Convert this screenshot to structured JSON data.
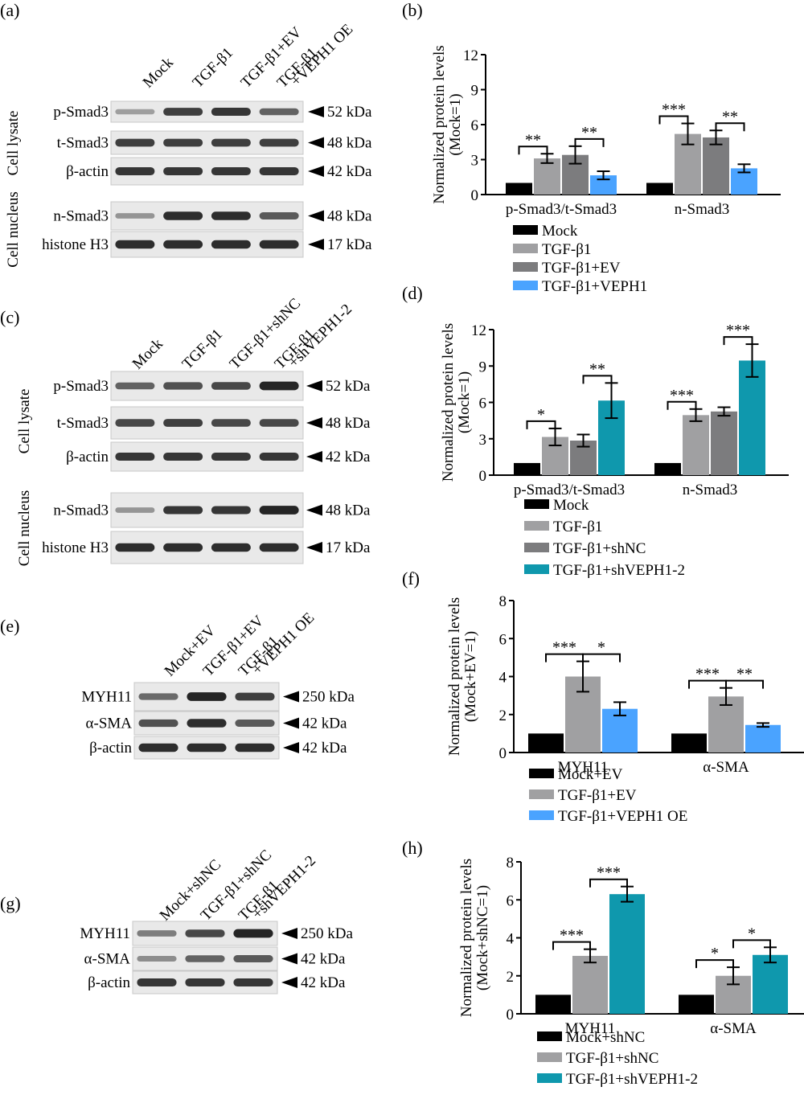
{
  "panels": [
    {
      "id": "a",
      "label": "(a)"
    },
    {
      "id": "b",
      "label": "(b)"
    },
    {
      "id": "c",
      "label": "(c)"
    },
    {
      "id": "d",
      "label": "(d)"
    },
    {
      "id": "e",
      "label": "(e)"
    },
    {
      "id": "f",
      "label": "(f)"
    },
    {
      "id": "g",
      "label": "(g)"
    },
    {
      "id": "h",
      "label": "(h)"
    }
  ],
  "blots": [
    {
      "id": "a",
      "lanes": [
        [
          "Mock"
        ],
        [
          "TGF-β1"
        ],
        [
          "TGF-β1+EV"
        ],
        [
          "TGF-β1",
          "+VEPH1 OE"
        ]
      ],
      "groups": [
        {
          "name": "Cell lysate",
          "rows": [
            {
              "protein": "p-Smad3",
              "size": "52 kDa",
              "intensity": [
                0.25,
                0.8,
                0.85,
                0.6
              ]
            },
            {
              "protein": "t-Smad3",
              "size": "48 kDa",
              "intensity": [
                0.8,
                0.8,
                0.8,
                0.8
              ]
            },
            {
              "protein": "β-actin",
              "size": "42 kDa",
              "intensity": [
                0.85,
                0.85,
                0.85,
                0.85
              ]
            }
          ]
        },
        {
          "name": "Cell nucleus",
          "rows": [
            {
              "protein": "n-Smad3",
              "size": "48 kDa",
              "intensity": [
                0.3,
                0.9,
                0.9,
                0.65
              ]
            },
            {
              "protein": "histone H3",
              "size": "17 kDa",
              "intensity": [
                0.9,
                0.9,
                0.9,
                0.9
              ]
            }
          ]
        }
      ]
    },
    {
      "id": "c",
      "lanes": [
        [
          "Mock"
        ],
        [
          "TGF-β1"
        ],
        [
          "TGF-β1+shNC"
        ],
        [
          "TGF-β1",
          "+shVEPH1-2"
        ]
      ],
      "groups": [
        {
          "name": "Cell lysate",
          "rows": [
            {
              "protein": "p-Smad3",
              "size": "52 kDa",
              "intensity": [
                0.6,
                0.7,
                0.75,
                0.95
              ]
            },
            {
              "protein": "t-Smad3",
              "size": "48 kDa",
              "intensity": [
                0.75,
                0.8,
                0.75,
                0.75
              ]
            },
            {
              "protein": "β-actin",
              "size": "42 kDa",
              "intensity": [
                0.85,
                0.85,
                0.85,
                0.85
              ]
            }
          ]
        },
        {
          "name": "Cell nucleus",
          "rows": [
            {
              "protein": "n-Smad3",
              "size": "48 kDa",
              "intensity": [
                0.3,
                0.85,
                0.85,
                0.95
              ]
            },
            {
              "protein": "histone H3",
              "size": "17 kDa",
              "intensity": [
                0.9,
                0.9,
                0.9,
                0.9
              ]
            }
          ]
        }
      ]
    },
    {
      "id": "e",
      "lanes": [
        [
          "Mock+EV"
        ],
        [
          "TGF-β1+EV"
        ],
        [
          "TGF-β1",
          "+VEPH1 OE"
        ]
      ],
      "groups": [
        {
          "name": "",
          "rows": [
            {
              "protein": "MYH11",
              "size": "250 kDa",
              "intensity": [
                0.55,
                0.95,
                0.8
              ]
            },
            {
              "protein": "α-SMA",
              "size": "42 kDa",
              "intensity": [
                0.7,
                0.9,
                0.65
              ]
            },
            {
              "protein": "β-actin",
              "size": "42 kDa",
              "intensity": [
                0.9,
                0.9,
                0.9
              ]
            }
          ]
        }
      ]
    },
    {
      "id": "g",
      "lanes": [
        [
          "Mock+shNC"
        ],
        [
          "TGF-β1+shNC"
        ],
        [
          "TGF-β1",
          "+shVEPH1-2"
        ]
      ],
      "groups": [
        {
          "name": "",
          "rows": [
            {
              "protein": "MYH11",
              "size": "250 kDa",
              "intensity": [
                0.45,
                0.75,
                0.95
              ]
            },
            {
              "protein": "α-SMA",
              "size": "42 kDa",
              "intensity": [
                0.35,
                0.6,
                0.65
              ]
            },
            {
              "protein": "β-actin",
              "size": "42 kDa",
              "intensity": [
                0.85,
                0.85,
                0.85
              ]
            }
          ]
        }
      ]
    }
  ],
  "colors": {
    "black": "#000000",
    "light_gray": "#a0a0a2",
    "dark_gray": "#7c7c7e",
    "blue": "#4aa3ff",
    "teal": "#0f98ad",
    "blot_bg": "#e9e9e9",
    "band": "#1c1c1c"
  },
  "chart_data": [
    {
      "id": "b",
      "type": "bar",
      "ylabel": [
        "Normalized protein levels",
        "(Mock=1)"
      ],
      "ylim": [
        0,
        12
      ],
      "yticks": [
        0,
        3,
        6,
        9,
        12
      ],
      "categories": [
        "p-Smad3/t-Smad3",
        "n-Smad3"
      ],
      "series": [
        {
          "name": "Mock",
          "color": "#000000",
          "values": [
            1,
            1
          ],
          "errors": [
            0,
            0
          ]
        },
        {
          "name": "TGF-β1",
          "color": "#a0a0a2",
          "values": [
            3.1,
            5.2
          ],
          "errors": [
            0.4,
            0.9
          ]
        },
        {
          "name": "TGF-β1+EV",
          "color": "#7c7c7e",
          "values": [
            3.4,
            4.9
          ],
          "errors": [
            0.75,
            0.6
          ]
        },
        {
          "name": "TGF-β1+VEPH1",
          "color": "#4aa3ff",
          "values": [
            1.65,
            2.25
          ],
          "errors": [
            0.35,
            0.35
          ]
        }
      ],
      "significance": [
        {
          "cat": 0,
          "from": 0,
          "to": 1,
          "label": "**"
        },
        {
          "cat": 0,
          "from": 2,
          "to": 3,
          "label": "**"
        },
        {
          "cat": 1,
          "from": 0,
          "to": 1,
          "label": "***"
        },
        {
          "cat": 1,
          "from": 2,
          "to": 3,
          "label": "**"
        }
      ],
      "legend": "below"
    },
    {
      "id": "d",
      "type": "bar",
      "ylabel": [
        "Normalized protein levels",
        "(Mock=1)"
      ],
      "ylim": [
        0,
        12
      ],
      "yticks": [
        0,
        3,
        6,
        9,
        12
      ],
      "categories": [
        "p-Smad3/t-Smad3",
        "n-Smad3"
      ],
      "series": [
        {
          "name": "Mock",
          "color": "#000000",
          "values": [
            1,
            1
          ],
          "errors": [
            0,
            0
          ]
        },
        {
          "name": "TGF-β1",
          "color": "#a0a0a2",
          "values": [
            3.15,
            4.95
          ],
          "errors": [
            0.7,
            0.5
          ]
        },
        {
          "name": "TGF-β1+shNC",
          "color": "#7c7c7e",
          "values": [
            2.85,
            5.25
          ],
          "errors": [
            0.5,
            0.35
          ]
        },
        {
          "name": "TGF-β1+shVEPH1-2",
          "color": "#0f98ad",
          "values": [
            6.15,
            9.45
          ],
          "errors": [
            1.45,
            1.35
          ]
        }
      ],
      "significance": [
        {
          "cat": 0,
          "from": 0,
          "to": 1,
          "label": "*"
        },
        {
          "cat": 0,
          "from": 2,
          "to": 3,
          "label": "**"
        },
        {
          "cat": 1,
          "from": 0,
          "to": 1,
          "label": "***"
        },
        {
          "cat": 1,
          "from": 2,
          "to": 3,
          "label": "***"
        }
      ],
      "legend": "below"
    },
    {
      "id": "f",
      "type": "bar",
      "ylabel": [
        "Normalized protein levels",
        "(Mock+EV=1)"
      ],
      "ylim": [
        0,
        8
      ],
      "yticks": [
        0,
        2,
        4,
        6,
        8
      ],
      "categories": [
        "MYH11",
        "α-SMA"
      ],
      "series": [
        {
          "name": "Mock+EV",
          "color": "#000000",
          "values": [
            1,
            1
          ],
          "errors": [
            0,
            0
          ]
        },
        {
          "name": "TGF-β1+EV",
          "color": "#a0a0a2",
          "values": [
            4.0,
            2.95
          ],
          "errors": [
            0.8,
            0.45
          ]
        },
        {
          "name": "TGF-β1+VEPH1 OE",
          "color": "#4aa3ff",
          "values": [
            2.3,
            1.45
          ],
          "errors": [
            0.35,
            0.1
          ]
        }
      ],
      "significance": [
        {
          "cat": 0,
          "from": 0,
          "to": 1,
          "label": "***"
        },
        {
          "cat": 0,
          "from": 1,
          "to": 2,
          "label": "*"
        },
        {
          "cat": 1,
          "from": 0,
          "to": 1,
          "label": "***"
        },
        {
          "cat": 1,
          "from": 1,
          "to": 2,
          "label": "**"
        }
      ],
      "legend": "below"
    },
    {
      "id": "h",
      "type": "bar",
      "ylabel": [
        "Normalized protein levels",
        "(Mock+shNC=1)"
      ],
      "ylim": [
        0,
        8
      ],
      "yticks": [
        0,
        2,
        4,
        6,
        8
      ],
      "categories": [
        "MYH11",
        "α-SMA"
      ],
      "series": [
        {
          "name": "Mock+shNC",
          "color": "#000000",
          "values": [
            1,
            1
          ],
          "errors": [
            0,
            0
          ]
        },
        {
          "name": "TGF-β1+shNC",
          "color": "#a0a0a2",
          "values": [
            3.05,
            2.0
          ],
          "errors": [
            0.35,
            0.45
          ]
        },
        {
          "name": "TGF-β1+shVEPH1-2",
          "color": "#0f98ad",
          "values": [
            6.3,
            3.1
          ],
          "errors": [
            0.4,
            0.4
          ]
        }
      ],
      "significance": [
        {
          "cat": 0,
          "from": 0,
          "to": 1,
          "label": "***"
        },
        {
          "cat": 0,
          "from": 1,
          "to": 2,
          "label": "***"
        },
        {
          "cat": 1,
          "from": 0,
          "to": 1,
          "label": "*"
        },
        {
          "cat": 1,
          "from": 1,
          "to": 2,
          "label": "*"
        }
      ],
      "legend": "below"
    }
  ]
}
